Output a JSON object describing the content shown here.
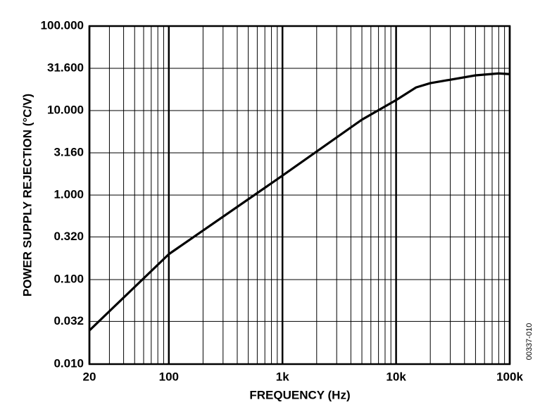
{
  "chart_data": {
    "type": "line",
    "xlabel": "FREQUENCY (Hz)",
    "ylabel": "POWER SUPPLY REJECTION (°C/V)",
    "annotation": "00337-010",
    "xscale": "log",
    "yscale": "log",
    "grid": true,
    "minor_grid": true,
    "xlim": [
      20,
      100000
    ],
    "ylim": [
      0.01,
      100
    ],
    "xticks": [
      20,
      100,
      {
        "value": 1000,
        "label": "1k"
      },
      {
        "value": 10000,
        "label": "10k"
      },
      {
        "value": 100000,
        "label": "100k"
      }
    ],
    "yticks": [
      {
        "value": 0.01,
        "label": "0.010"
      },
      {
        "value": 0.032,
        "label": "0.032"
      },
      {
        "value": 0.1,
        "label": "0.100"
      },
      {
        "value": 0.32,
        "label": "0.320"
      },
      {
        "value": 1,
        "label": "1.000"
      },
      {
        "value": 3.16,
        "label": "3.160"
      },
      {
        "value": 10,
        "label": "10.000"
      },
      {
        "value": 31.6,
        "label": "31.600"
      },
      {
        "value": 100,
        "label": "100.000"
      }
    ],
    "x": [
      20,
      100,
      1000,
      5000,
      10000,
      15000,
      20000,
      50000,
      80000,
      100000
    ],
    "series": [
      {
        "color": "#000000",
        "values": [
          0.025,
          0.2,
          1.7,
          7.8,
          13.3,
          18.8,
          21.1,
          26.1,
          27.5,
          27.0
        ]
      }
    ]
  }
}
